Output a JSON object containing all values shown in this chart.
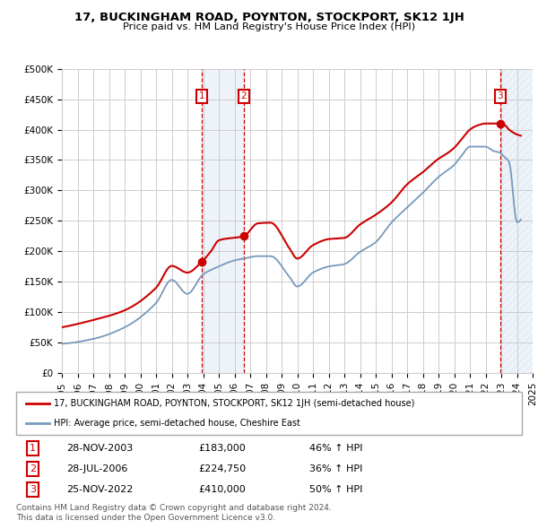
{
  "title": "17, BUCKINGHAM ROAD, POYNTON, STOCKPORT, SK12 1JH",
  "subtitle": "Price paid vs. HM Land Registry's House Price Index (HPI)",
  "legend_line1": "17, BUCKINGHAM ROAD, POYNTON, STOCKPORT, SK12 1JH (semi-detached house)",
  "legend_line2": "HPI: Average price, semi-detached house, Cheshire East",
  "footer1": "Contains HM Land Registry data © Crown copyright and database right 2024.",
  "footer2": "This data is licensed under the Open Government Licence v3.0.",
  "transactions": [
    {
      "num": 1,
      "date": "28-NOV-2003",
      "price": "£183,000",
      "change": "46% ↑ HPI",
      "year": 2003.92
    },
    {
      "num": 2,
      "date": "28-JUL-2006",
      "price": "£224,750",
      "change": "36% ↑ HPI",
      "year": 2006.58
    },
    {
      "num": 3,
      "date": "25-NOV-2022",
      "price": "£410,000",
      "change": "50% ↑ HPI",
      "year": 2022.92
    }
  ],
  "marker_prices": [
    183000,
    224750,
    410000
  ],
  "xlim": [
    1995,
    2025
  ],
  "ylim": [
    0,
    500000
  ],
  "yticks": [
    0,
    50000,
    100000,
    150000,
    200000,
    250000,
    300000,
    350000,
    400000,
    450000,
    500000
  ],
  "xticks": [
    1995,
    1996,
    1997,
    1998,
    1999,
    2000,
    2001,
    2002,
    2003,
    2004,
    2005,
    2006,
    2007,
    2008,
    2009,
    2010,
    2011,
    2012,
    2013,
    2014,
    2015,
    2016,
    2017,
    2018,
    2019,
    2020,
    2021,
    2022,
    2023,
    2024,
    2025
  ],
  "bg_color": "#ffffff",
  "grid_color": "#cccccc",
  "red_color": "#cc0000",
  "blue_color": "#7799bb",
  "shade_color": "#ccddf0"
}
